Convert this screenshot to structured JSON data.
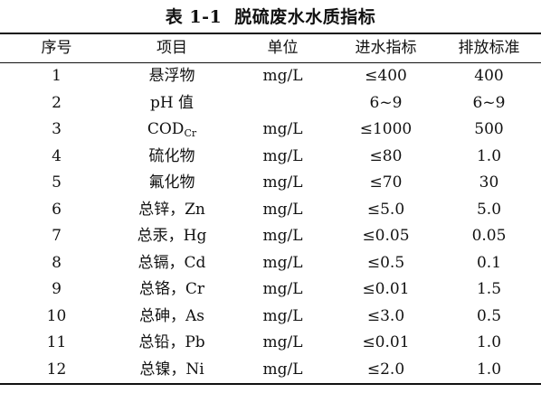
{
  "caption": {
    "number": "表 1-1",
    "title": "脱硫废水水质指标"
  },
  "table": {
    "headers": [
      "序号",
      "项目",
      "单位",
      "进水指标",
      "排放标准"
    ],
    "rows": [
      {
        "no": "1",
        "item": "悬浮物",
        "unit": "mg/L",
        "influent": "≤400",
        "standard": "400"
      },
      {
        "no": "2",
        "item": "pH 值",
        "unit": "",
        "influent": "6~9",
        "standard": "6~9"
      },
      {
        "no": "3",
        "item": "COD",
        "item_sub": "Cr",
        "unit": "mg/L",
        "influent": "≤1000",
        "standard": "500"
      },
      {
        "no": "4",
        "item": "硫化物",
        "unit": "mg/L",
        "influent": "≤80",
        "standard": "1.0"
      },
      {
        "no": "5",
        "item": "氟化物",
        "unit": "mg/L",
        "influent": "≤70",
        "standard": "30"
      },
      {
        "no": "6",
        "item": "总锌，Zn",
        "unit": "mg/L",
        "influent": "≤5.0",
        "standard": "5.0"
      },
      {
        "no": "7",
        "item": "总汞，Hg",
        "unit": "mg/L",
        "influent": "≤0.05",
        "standard": "0.05"
      },
      {
        "no": "8",
        "item": "总镉，Cd",
        "unit": "mg/L",
        "influent": "≤0.5",
        "standard": "0.1"
      },
      {
        "no": "9",
        "item": "总铬，Cr",
        "unit": "mg/L",
        "influent": "≤0.01",
        "standard": "1.5"
      },
      {
        "no": "10",
        "item": "总砷，As",
        "unit": "mg/L",
        "influent": "≤3.0",
        "standard": "0.5"
      },
      {
        "no": "11",
        "item": "总铅，Pb",
        "unit": "mg/L",
        "influent": "≤0.01",
        "standard": "1.0"
      },
      {
        "no": "12",
        "item": "总镍，Ni",
        "unit": "mg/L",
        "influent": "≤2.0",
        "standard": "1.0"
      }
    ]
  }
}
